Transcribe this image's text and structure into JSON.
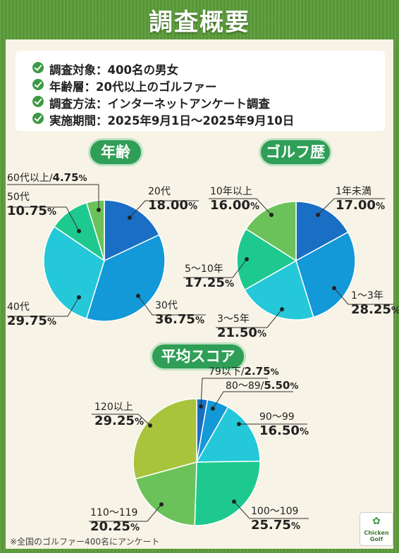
{
  "title": "調査概要",
  "overview": [
    "調査対象：400名の男女",
    "年齢層：20代以上のゴルファー",
    "調査方法：インターネットアンケート調査",
    "実施期間：2025年9月1日〜2025年9月10日"
  ],
  "footnote": "※全国のゴルファー400名にアンケート",
  "logo": {
    "line1": "Chicken",
    "line2": "Golf"
  },
  "chart_data": [
    {
      "type": "pie",
      "title": "年齢",
      "categories": [
        "20代",
        "30代",
        "40代",
        "50代",
        "60代以上"
      ],
      "values": [
        18.0,
        36.75,
        29.75,
        10.75,
        4.75
      ],
      "value_labels": [
        "18.00",
        "36.75",
        "29.75",
        "10.75",
        "4.75"
      ],
      "unit": "%",
      "colors": [
        "#1a6fc4",
        "#1398d8",
        "#24c8d8",
        "#1ec98f",
        "#6cc25a"
      ]
    },
    {
      "type": "pie",
      "title": "ゴルフ歴",
      "categories": [
        "1年未満",
        "1〜3年",
        "3〜5年",
        "5〜10年",
        "10年以上"
      ],
      "values": [
        17.0,
        28.25,
        21.5,
        17.25,
        16.0
      ],
      "value_labels": [
        "17.00",
        "28.25",
        "21.50",
        "17.25",
        "16.00"
      ],
      "unit": "%",
      "colors": [
        "#1a6fc4",
        "#1398d8",
        "#24c8d8",
        "#1ec98f",
        "#6cc25a"
      ]
    },
    {
      "type": "pie",
      "title": "平均スコア",
      "categories": [
        "79以下",
        "80〜89",
        "90〜99",
        "100〜109",
        "110〜119",
        "120以上"
      ],
      "values": [
        2.75,
        5.5,
        16.5,
        25.75,
        20.25,
        29.25
      ],
      "value_labels": [
        "2.75",
        "5.50",
        "16.50",
        "25.75",
        "20.25",
        "29.25"
      ],
      "unit": "%",
      "colors": [
        "#1a6fc4",
        "#1398d8",
        "#24c8d8",
        "#1ec98f",
        "#6cc25a",
        "#a8c43c"
      ]
    }
  ]
}
